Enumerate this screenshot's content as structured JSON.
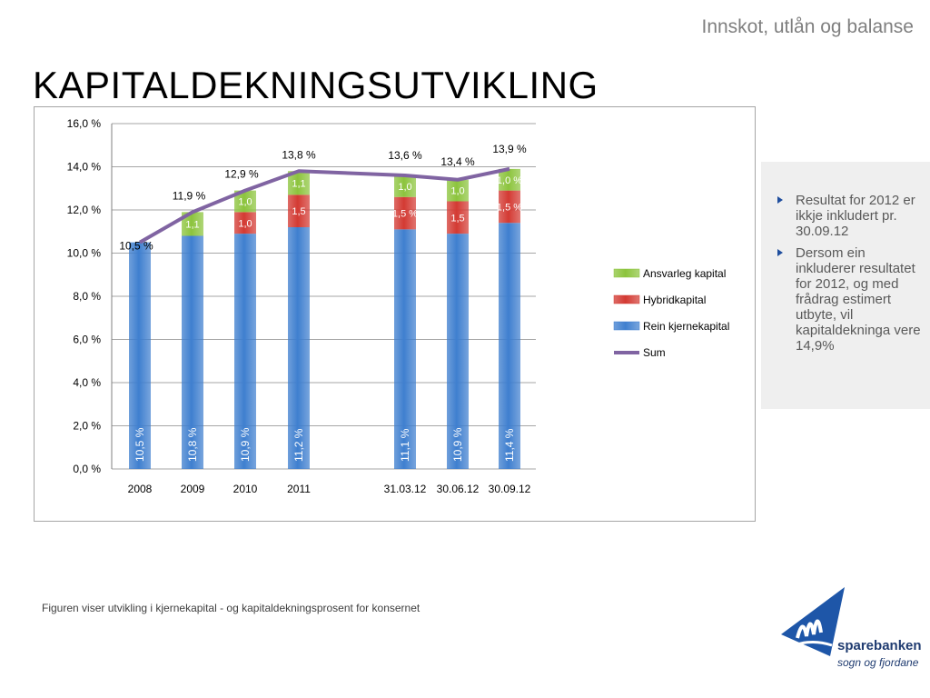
{
  "header": {
    "subtitle": "Innskot, utlån og balanse",
    "title": "KAPITALDEKNINGSUTVIKLING"
  },
  "colors": {
    "core": "#3f7fcf",
    "hybrid": "#d33a33",
    "supplementary": "#8cc43d",
    "sum": "#8064a2"
  },
  "chart_data": {
    "type": "bar",
    "stacked": true,
    "categories": [
      "2008",
      "2009",
      "2010",
      "2011",
      "31.03.12",
      "30.06.12",
      "30.09.12"
    ],
    "series": [
      {
        "name": "Rein kjernekapital",
        "values": [
          10.5,
          10.8,
          10.9,
          11.2,
          11.1,
          10.9,
          11.4
        ],
        "labels": [
          "10,5 %",
          "10,8 %",
          "10,9 %",
          "11,2 %",
          "11,1 %",
          "10,9 %",
          "11,4 %"
        ]
      },
      {
        "name": "Hybridkapital",
        "values": [
          0,
          0,
          1.0,
          1.5,
          1.5,
          1.5,
          1.5
        ],
        "labels": [
          "",
          "",
          "1,0",
          "1,5",
          "1,5 %",
          "1,5",
          "1,5 %"
        ]
      },
      {
        "name": "Ansvarleg kapital",
        "values": [
          0,
          1.1,
          1.0,
          1.1,
          1.0,
          1.0,
          1.0
        ],
        "labels": [
          "",
          "1,1",
          "1,0",
          "1,1",
          "1,0",
          "1,0",
          "1,0 %"
        ]
      },
      {
        "name": "Sum",
        "type": "line",
        "values": [
          10.5,
          11.9,
          12.9,
          13.8,
          13.6,
          13.4,
          13.9
        ],
        "labels": [
          "10,5 %",
          "11,9 %",
          "12,9 %",
          "13,8 %",
          "13,6 %",
          "13,4 %",
          "13,9 %"
        ]
      }
    ],
    "ylim": [
      0,
      16
    ],
    "yticks": [
      "0,0 %",
      "2,0 %",
      "4,0 %",
      "6,0 %",
      "8,0 %",
      "10,0 %",
      "12,0 %",
      "14,0 %",
      "16,0 %"
    ],
    "legend": [
      "Ansvarleg kapital",
      "Hybridkapital",
      "Rein kjernekapital",
      "Sum"
    ],
    "legend_position": "right",
    "grid": true
  },
  "notes": [
    "Resultat for 2012 er ikkje inkludert pr. 30.09.12",
    "Dersom ein inkluderer resultatet for 2012, og med frådrag estimert utbyte, vil kapitaldekninga vere 14,9%"
  ],
  "caption": "Figuren viser utvikling i kjernekapital - og kapitaldekningsprosent for konsernet",
  "logo": {
    "name": "sparebanken",
    "sub": "sogn og fjordane"
  }
}
